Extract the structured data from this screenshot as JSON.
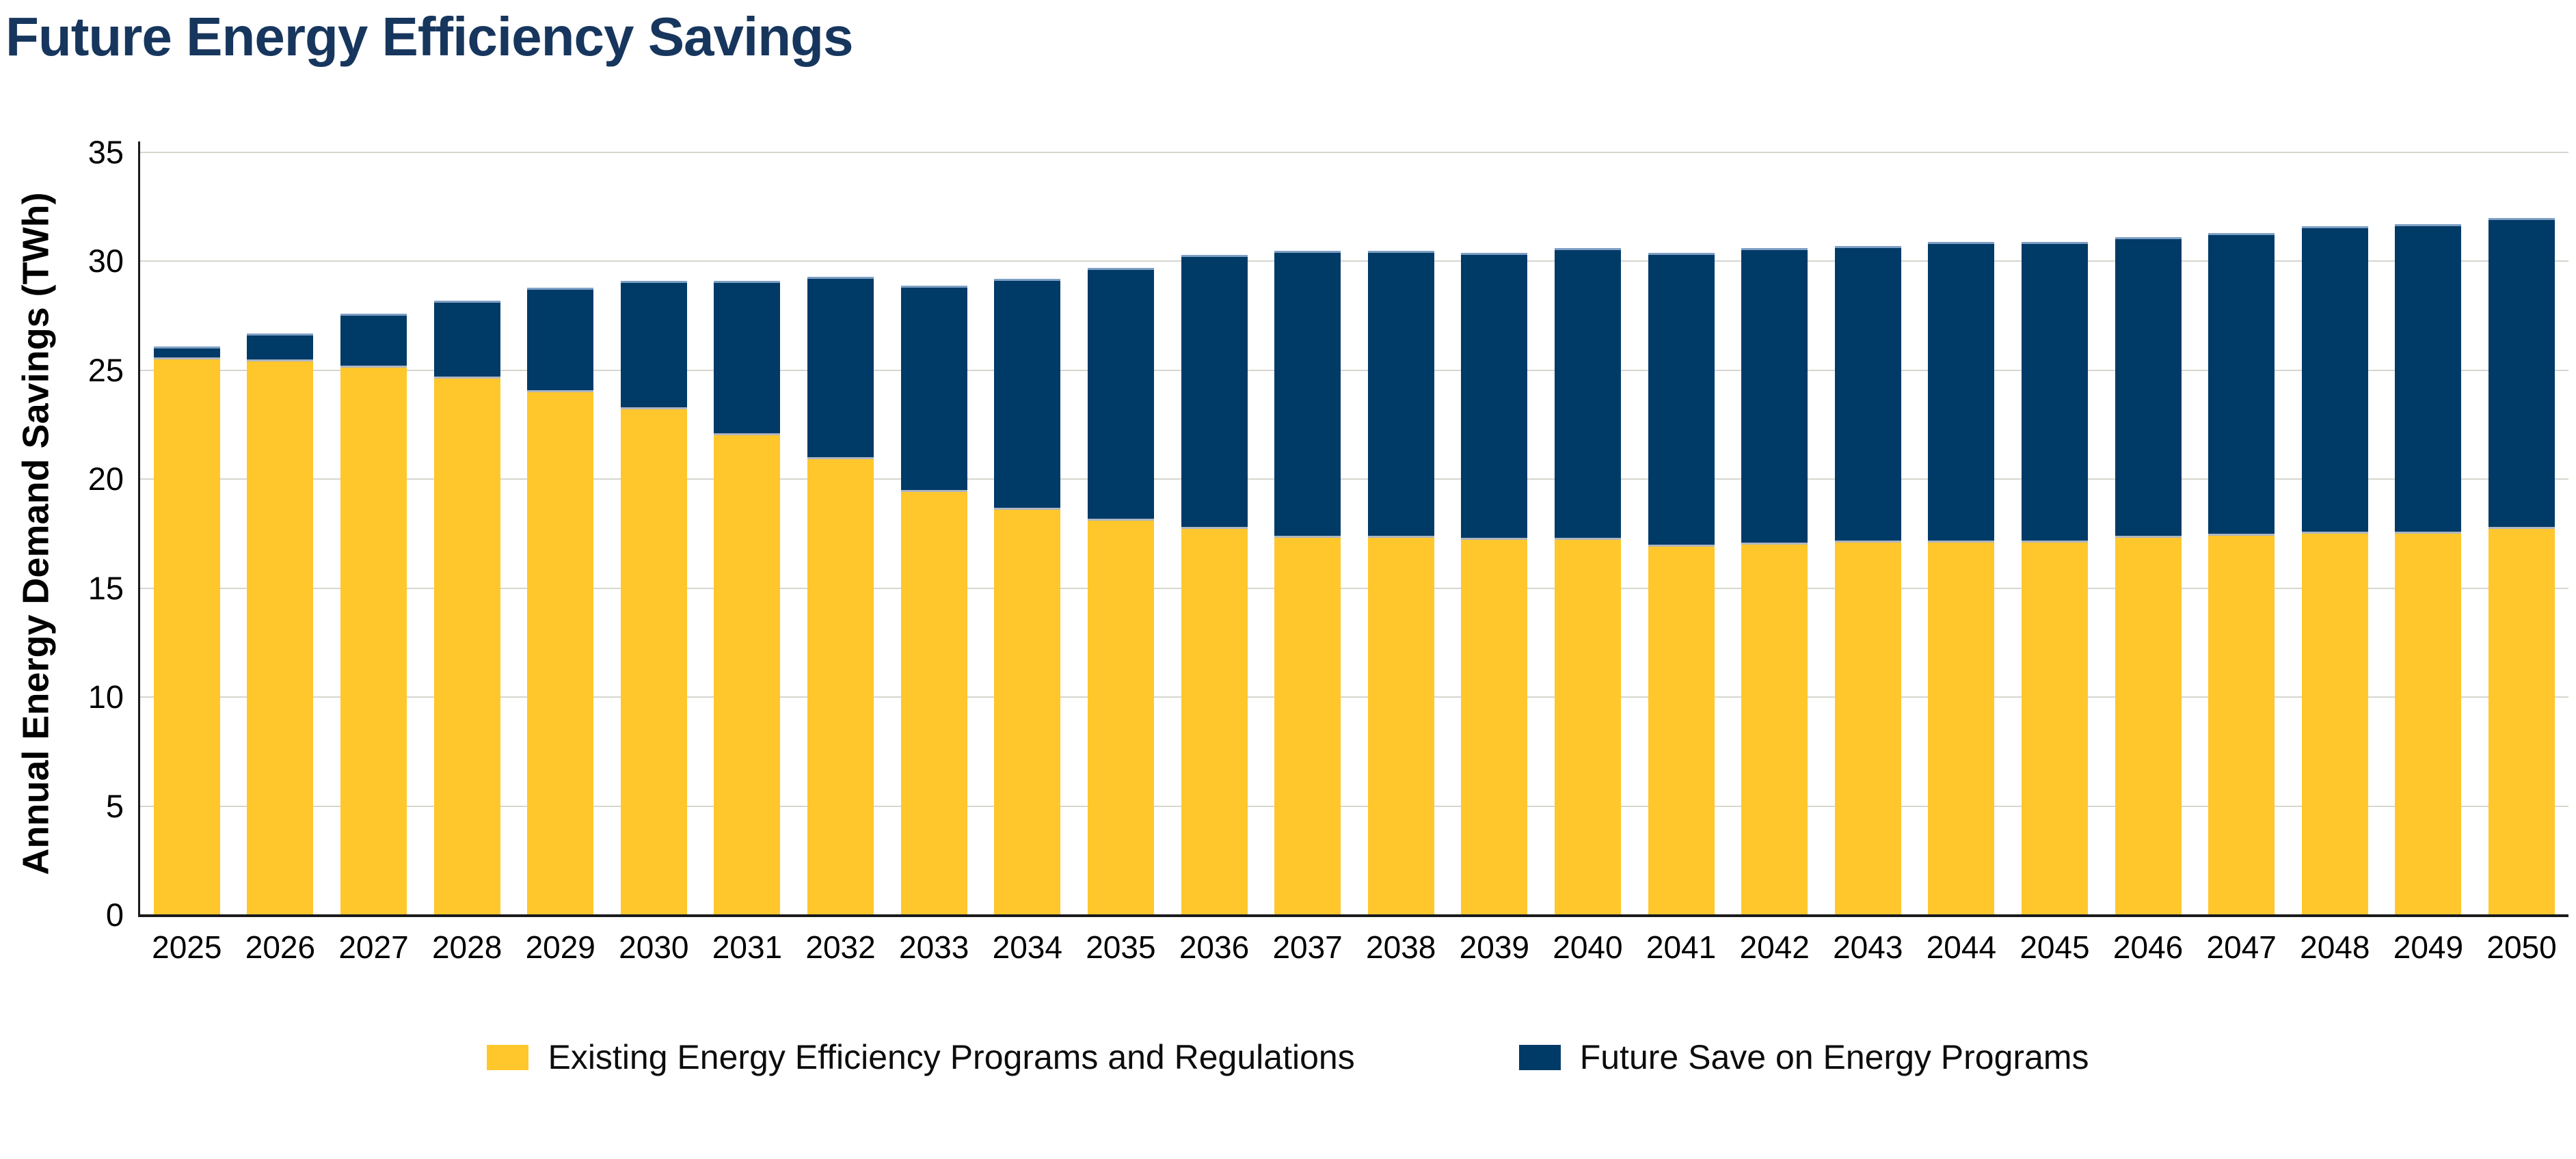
{
  "title": "Future Energy Efficiency Savings",
  "colors": {
    "title_text": "#17365D",
    "axis_line": "#1a1a1a",
    "gridline": "#D6D6CE",
    "existing_series": "#FFC72C",
    "future_series": "#003A67",
    "background": "#FFFFFF"
  },
  "chart_data": {
    "type": "bar",
    "stacked": true,
    "title": "Future Energy Efficiency Savings",
    "xlabel": "",
    "ylabel": "Annual Energy Demand Savings (TWh)",
    "ylim": [
      0,
      35
    ],
    "yticks": [
      0,
      5,
      10,
      15,
      20,
      25,
      30,
      35
    ],
    "grid": true,
    "legend_position": "bottom",
    "categories": [
      "2025",
      "2026",
      "2027",
      "2028",
      "2029",
      "2030",
      "2031",
      "2032",
      "2033",
      "2034",
      "2035",
      "2036",
      "2037",
      "2038",
      "2039",
      "2040",
      "2041",
      "2042",
      "2043",
      "2044",
      "2045",
      "2046",
      "2047",
      "2048",
      "2049",
      "2050"
    ],
    "series": [
      {
        "name": "Existing Energy Efficiency Programs and Regulations",
        "color": "#FFC72C",
        "values": [
          25.6,
          25.5,
          25.2,
          24.7,
          24.1,
          23.3,
          22.1,
          21.0,
          19.5,
          18.7,
          18.2,
          17.8,
          17.4,
          17.4,
          17.3,
          17.3,
          17.0,
          17.1,
          17.2,
          17.2,
          17.2,
          17.4,
          17.5,
          17.6,
          17.6,
          17.8
        ]
      },
      {
        "name": "Future Save on Energy Programs",
        "color": "#003A67",
        "values": [
          0.5,
          1.2,
          2.4,
          3.5,
          4.7,
          5.8,
          7.0,
          8.3,
          9.4,
          10.5,
          11.5,
          12.5,
          13.1,
          13.1,
          13.1,
          13.3,
          13.4,
          13.5,
          13.5,
          13.7,
          13.7,
          13.7,
          13.8,
          14.0,
          14.1,
          14.2
        ]
      }
    ],
    "totals": [
      26.1,
      26.7,
      27.6,
      28.2,
      28.8,
      29.1,
      29.1,
      29.3,
      28.9,
      29.2,
      29.7,
      30.3,
      30.5,
      30.5,
      30.4,
      30.6,
      30.4,
      30.6,
      30.7,
      30.9,
      30.9,
      31.1,
      31.3,
      31.6,
      31.7,
      32.0
    ]
  }
}
